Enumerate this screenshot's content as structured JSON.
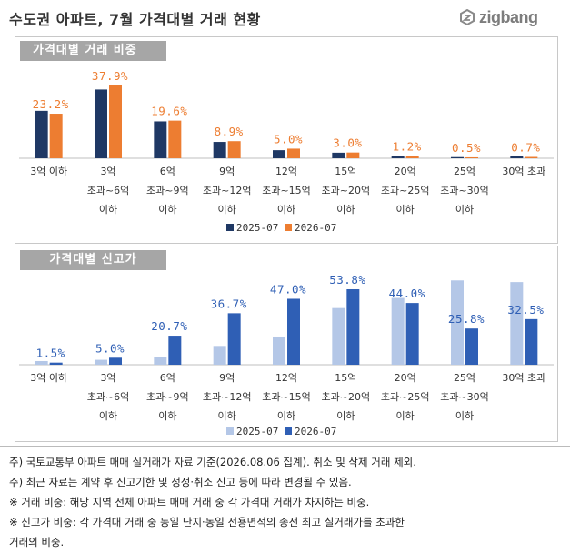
{
  "header": {
    "title": "수도권 아파트, 7월 가격대별 거래 현황",
    "logo_text": "zigbang"
  },
  "colors": {
    "series_2025_top": "#1f3864",
    "series_2026_top": "#ed7d31",
    "series_2025_bottom": "#b4c7e7",
    "series_2026_bottom": "#2f5fb5",
    "label_top": "#ed7d31",
    "label_bottom": "#2f5fb5"
  },
  "chart_data": [
    {
      "type": "bar",
      "title": "가격대별 거래 비중",
      "categories": [
        [
          "3억 이하"
        ],
        [
          "3억",
          "초과~6억",
          "이하"
        ],
        [
          "6억",
          "초과~9억",
          "이하"
        ],
        [
          "9억",
          "초과~12억",
          "이하"
        ],
        [
          "12억",
          "초과~15억",
          "이하"
        ],
        [
          "15억",
          "초과~20억",
          "이하"
        ],
        [
          "20억",
          "초과~25억",
          "이하"
        ],
        [
          "25억",
          "초과~30억",
          "이하"
        ],
        [
          "30억 초과"
        ]
      ],
      "series": [
        {
          "name": "2025-07",
          "values": [
            24.7,
            35.8,
            19.2,
            8.5,
            4.2,
            2.9,
            1.4,
            0.6,
            1.2
          ]
        },
        {
          "name": "2026-07",
          "values": [
            23.2,
            37.9,
            19.6,
            8.9,
            5.0,
            3.0,
            1.2,
            0.5,
            0.7
          ]
        }
      ],
      "data_labels": [
        "23.2%",
        "37.9%",
        "19.6%",
        "8.9%",
        "5.0%",
        "3.0%",
        "1.2%",
        "0.5%",
        "0.7%"
      ],
      "ylim": [
        0,
        45
      ],
      "grid": false,
      "legend_position": "bottom"
    },
    {
      "type": "bar",
      "title": "가격대별 신고가",
      "categories": [
        [
          "3억 이하"
        ],
        [
          "3억",
          "초과~6억",
          "이하"
        ],
        [
          "6억",
          "초과~9억",
          "이하"
        ],
        [
          "9억",
          "초과~12억",
          "이하"
        ],
        [
          "12억",
          "초과~15억",
          "이하"
        ],
        [
          "15억",
          "초과~20억",
          "이하"
        ],
        [
          "20억",
          "초과~25억",
          "이하"
        ],
        [
          "25억",
          "초과~30억",
          "이하"
        ],
        [
          "30억 초과"
        ]
      ],
      "series": [
        {
          "name": "2025-07",
          "values": [
            2.6,
            3.5,
            5.8,
            13.4,
            20.1,
            40.4,
            47.6,
            60.1,
            58.9
          ]
        },
        {
          "name": "2026-07",
          "values": [
            1.5,
            5.0,
            20.7,
            36.7,
            47.0,
            53.8,
            44.0,
            25.8,
            32.5
          ]
        }
      ],
      "data_labels": [
        "1.5%",
        "5.0%",
        "20.7%",
        "36.7%",
        "47.0%",
        "53.8%",
        "44.0%",
        "25.8%",
        "32.5%"
      ],
      "ylim": [
        0,
        70
      ],
      "grid": false,
      "legend_position": "bottom"
    }
  ],
  "notes": [
    "주) 국토교통부 아파트 매매 실거래가 자료 기준(2026.08.06 집계). 취소 및 삭제 거래 제외.",
    "주)  최근 자료는 계약 후 신고기한 및 정정·취소 신고 등에 따라 변경될 수 있음.",
    "※ 거래 비중: 해당 지역 전체 아파트 매매 거래 중 각 가격대 거래가 차지하는 비중.",
    "※ 신고가 비중: 각 가격대 거래 중 동일 단지·동일 전용면적의 종전 최고 실거래가를 초과한",
    "거래의 비중."
  ]
}
